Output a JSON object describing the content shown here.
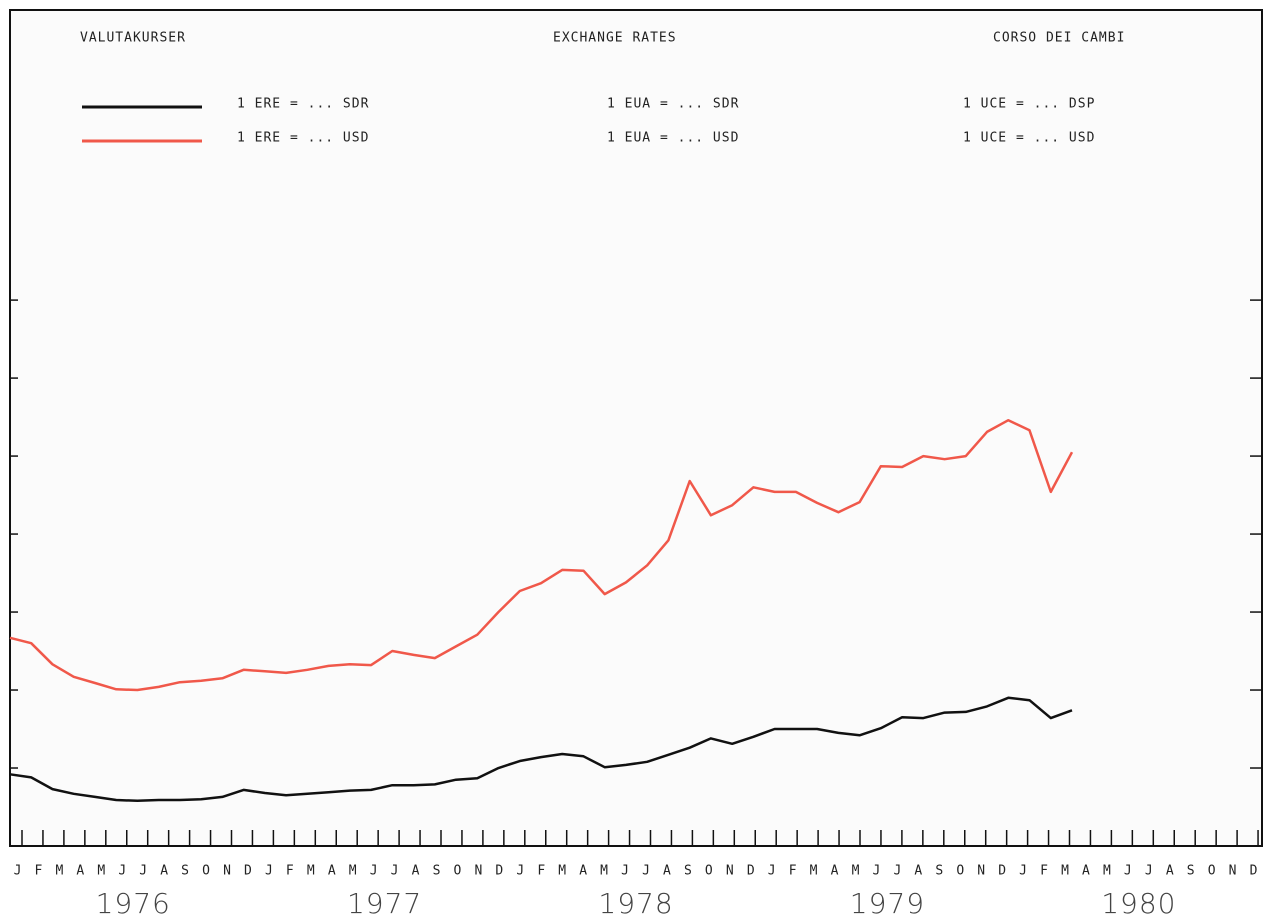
{
  "chart_data": {
    "type": "line",
    "legend_headings": [
      "VALUTAKURSER",
      "EXCHANGE RATES",
      "CORSO DEI CAMBI"
    ],
    "legend_translations": [
      [
        "1 ERE = ... SDR",
        "1 ERE = ... USD"
      ],
      [
        "1 UCE = ... DSP",
        "1 UCE = ... USD"
      ]
    ],
    "categories": [
      "J",
      "F",
      "M",
      "A",
      "M",
      "J",
      "J",
      "A",
      "S",
      "O",
      "N",
      "D",
      "J",
      "F",
      "M",
      "A",
      "M",
      "J",
      "J",
      "A",
      "S",
      "O",
      "N",
      "D",
      "J",
      "F",
      "M",
      "A",
      "M",
      "J",
      "J",
      "A",
      "S",
      "O",
      "N",
      "D",
      "J",
      "F",
      "M",
      "A",
      "M",
      "J",
      "J",
      "A",
      "S",
      "O",
      "N",
      "D",
      "J",
      "F",
      "M",
      "A",
      "M",
      "J",
      "J",
      "A",
      "S",
      "O",
      "N",
      "D"
    ],
    "years": [
      "1976",
      "1977",
      "1978",
      "1979",
      "1980"
    ],
    "ylim": [
      0.8,
      1.872
    ],
    "yticks": [
      0.9,
      1.0,
      1.1,
      1.2,
      1.3,
      1.4,
      1.5
    ],
    "series": [
      {
        "name": "1 EUA = ... SDR",
        "color": "#111111",
        "values": [
          0.892,
          0.888,
          0.873,
          0.867,
          0.863,
          0.859,
          0.858,
          0.859,
          0.859,
          0.86,
          0.863,
          0.872,
          0.868,
          0.865,
          0.867,
          0.869,
          0.871,
          0.872,
          0.878,
          0.878,
          0.879,
          0.885,
          0.887,
          0.9,
          0.909,
          0.914,
          0.918,
          0.915,
          0.901,
          0.904,
          0.908,
          0.917,
          0.926,
          0.938,
          0.931,
          0.94,
          0.95,
          0.95,
          0.95,
          0.945,
          0.942,
          0.951,
          0.965,
          0.964,
          0.971,
          0.972,
          0.979,
          0.99,
          0.987,
          0.964,
          0.974,
          null,
          null,
          null,
          null,
          null,
          null,
          null,
          null,
          null
        ]
      },
      {
        "name": "1 EUA = ... USD",
        "color": "#f0584a",
        "values": [
          1.067,
          1.06,
          1.033,
          1.017,
          1.009,
          1.001,
          1.0,
          1.004,
          1.01,
          1.012,
          1.015,
          1.026,
          1.024,
          1.022,
          1.026,
          1.031,
          1.033,
          1.032,
          1.05,
          1.045,
          1.041,
          1.056,
          1.071,
          1.1,
          1.127,
          1.137,
          1.154,
          1.153,
          1.123,
          1.138,
          1.16,
          1.192,
          1.268,
          1.224,
          1.237,
          1.26,
          1.254,
          1.254,
          1.24,
          1.228,
          1.241,
          1.287,
          1.286,
          1.3,
          1.296,
          1.3,
          1.331,
          1.346,
          1.333,
          1.254,
          1.305,
          null,
          null,
          null,
          null,
          null,
          null,
          null,
          null,
          null
        ]
      }
    ]
  }
}
